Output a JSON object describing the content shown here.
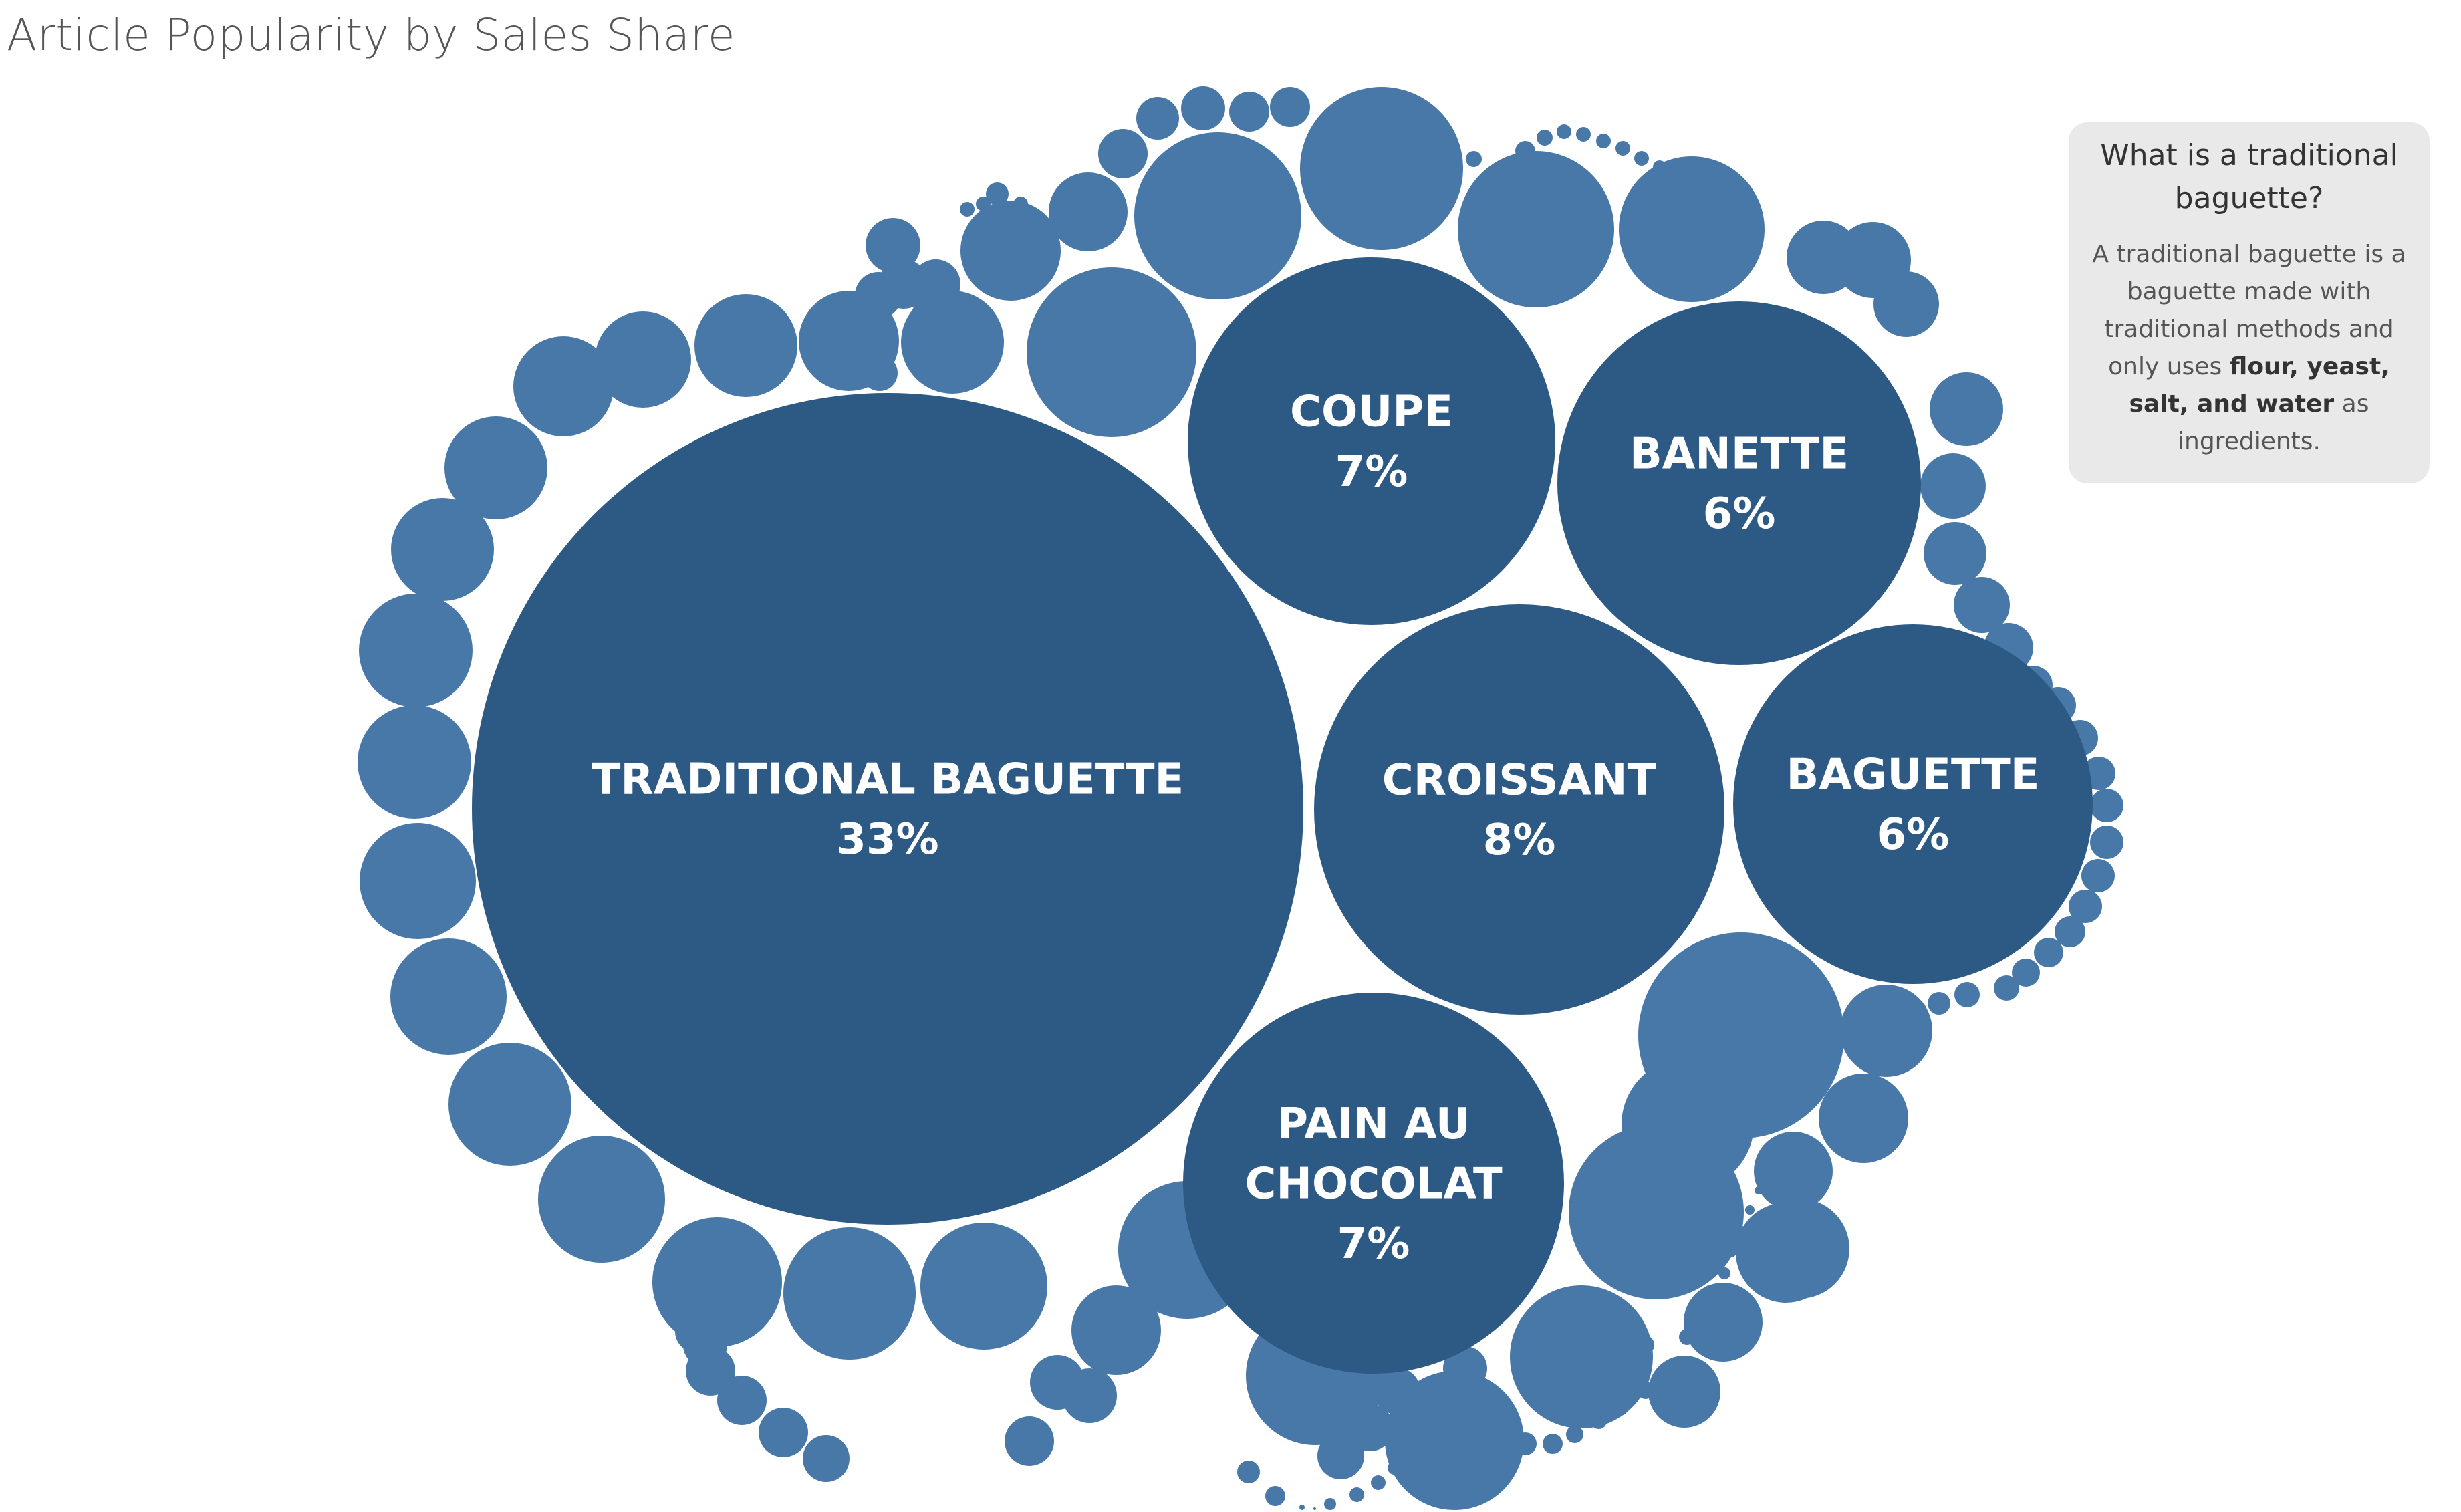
{
  "title": "Article Popularity by Sales Share",
  "info_card": {
    "heading": "What is a traditional baguette?",
    "body_prefix": "A traditional baguette is a baguette made with traditional methods and only uses ",
    "body_bold": "flour, yeast, salt, and water",
    "body_suffix": " as ingredients."
  },
  "colors": {
    "major": "#2d5985",
    "minor": "#4778a7",
    "label": "#ffffff"
  },
  "chart_data": {
    "type": "bubble",
    "title": "Article Popularity by Sales Share",
    "series": [
      {
        "name": "TRADITIONAL BAGUETTE",
        "label_lines": [
          "TRADITIONAL BAGUETTE"
        ],
        "value_label": "33%",
        "value": 33
      },
      {
        "name": "CROISSANT",
        "label_lines": [
          "CROISSANT"
        ],
        "value_label": "8%",
        "value": 8
      },
      {
        "name": "COUPE",
        "label_lines": [
          "COUPE"
        ],
        "value_label": "7%",
        "value": 7
      },
      {
        "name": "PAIN AU CHOCOLAT",
        "label_lines": [
          "PAIN AU",
          "CHOCOLAT"
        ],
        "value_label": "7%",
        "value": 7
      },
      {
        "name": "BANETTE",
        "label_lines": [
          "BANETTE"
        ],
        "value_label": "6%",
        "value": 6
      },
      {
        "name": "BAGUETTE",
        "label_lines": [
          "BAGUETTE"
        ],
        "value_label": "6%",
        "value": 6
      }
    ],
    "unlabeled_article_count": 140
  }
}
